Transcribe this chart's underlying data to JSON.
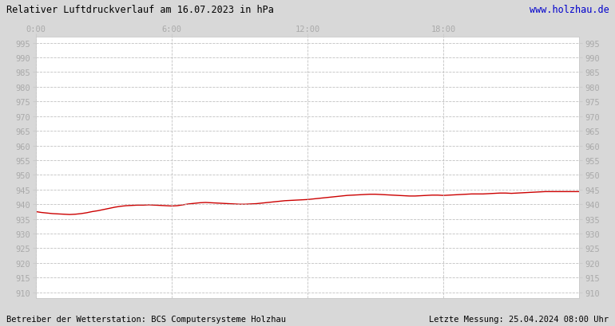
{
  "title": "Relativer Luftdruckverlauf am 16.07.2023 in hPa",
  "title_color": "#000000",
  "url_text": "www.holzhau.de",
  "url_color": "#0000cc",
  "footer_left": "Betreiber der Wetterstation: BCS Computersysteme Holzhau",
  "footer_right": "Letzte Messung: 25.04.2024 08:00 Uhr",
  "footer_color": "#000000",
  "background_color": "#d8d8d8",
  "plot_background": "#ffffff",
  "grid_color": "#bbbbbb",
  "line_color": "#cc0000",
  "ylim": [
    908,
    997
  ],
  "yticks": [
    910,
    915,
    920,
    925,
    930,
    935,
    940,
    945,
    950,
    955,
    960,
    965,
    970,
    975,
    980,
    985,
    990,
    995
  ],
  "xtick_labels": [
    "0:00",
    "6:00",
    "12:00",
    "18:00"
  ],
  "xtick_positions": [
    0,
    6,
    12,
    18
  ],
  "xlim": [
    0,
    24
  ],
  "pressure_x": [
    0.0,
    0.25,
    0.5,
    0.75,
    1.0,
    1.25,
    1.5,
    1.75,
    2.0,
    2.25,
    2.5,
    2.75,
    3.0,
    3.25,
    3.5,
    3.75,
    4.0,
    4.25,
    4.5,
    4.75,
    5.0,
    5.25,
    5.5,
    5.75,
    6.0,
    6.25,
    6.5,
    6.75,
    7.0,
    7.25,
    7.5,
    7.75,
    8.0,
    8.25,
    8.5,
    8.75,
    9.0,
    9.25,
    9.5,
    9.75,
    10.0,
    10.25,
    10.5,
    10.75,
    11.0,
    11.25,
    11.5,
    11.75,
    12.0,
    12.25,
    12.5,
    12.75,
    13.0,
    13.25,
    13.5,
    13.75,
    14.0,
    14.25,
    14.5,
    14.75,
    15.0,
    15.25,
    15.5,
    15.75,
    16.0,
    16.25,
    16.5,
    16.75,
    17.0,
    17.25,
    17.5,
    17.75,
    18.0,
    18.25,
    18.5,
    18.75,
    19.0,
    19.25,
    19.5,
    19.75,
    20.0,
    20.25,
    20.5,
    20.75,
    21.0,
    21.25,
    21.5,
    21.75,
    22.0,
    22.25,
    22.5,
    22.75,
    23.0,
    23.25,
    23.5,
    23.75,
    24.0
  ],
  "pressure_y": [
    937.5,
    937.2,
    937.0,
    936.8,
    936.7,
    936.6,
    936.5,
    936.6,
    936.8,
    937.1,
    937.5,
    937.8,
    938.2,
    938.6,
    939.0,
    939.3,
    939.5,
    939.6,
    939.7,
    939.7,
    939.8,
    939.7,
    939.6,
    939.5,
    939.4,
    939.5,
    939.8,
    940.1,
    940.3,
    940.5,
    940.6,
    940.5,
    940.4,
    940.3,
    940.2,
    940.1,
    940.0,
    940.0,
    940.1,
    940.2,
    940.4,
    940.6,
    940.8,
    941.0,
    941.2,
    941.3,
    941.4,
    941.5,
    941.6,
    941.8,
    942.0,
    942.2,
    942.4,
    942.6,
    942.8,
    943.0,
    943.1,
    943.2,
    943.3,
    943.4,
    943.4,
    943.3,
    943.2,
    943.1,
    943.0,
    942.9,
    942.8,
    942.8,
    942.9,
    943.0,
    943.1,
    943.1,
    943.0,
    943.1,
    943.2,
    943.3,
    943.4,
    943.5,
    943.5,
    943.5,
    943.6,
    943.7,
    943.8,
    943.8,
    943.7,
    943.8,
    943.9,
    944.0,
    944.1,
    944.2,
    944.3,
    944.3,
    944.3,
    944.3,
    944.3,
    944.3,
    944.3
  ]
}
